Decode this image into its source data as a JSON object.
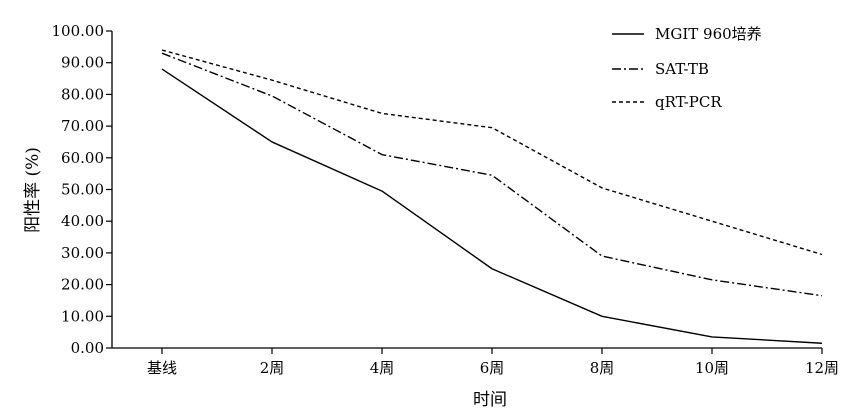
{
  "chart_data": {
    "type": "line",
    "title": "",
    "xlabel": "时间",
    "ylabel": "阳性率 (%)",
    "categories": [
      "基线",
      "2周",
      "4周",
      "6周",
      "8周",
      "10周",
      "12周"
    ],
    "ylim": [
      0,
      100
    ],
    "yticks": [
      "0.00",
      "10.00",
      "20.00",
      "30.00",
      "40.00",
      "50.00",
      "60.00",
      "70.00",
      "80.00",
      "90.00",
      "100.00"
    ],
    "grid": false,
    "legend_position": "top-right",
    "series": [
      {
        "name": "MGIT 960培养",
        "style": "solid",
        "color": "#000000",
        "values": [
          88.0,
          65.0,
          49.5,
          25.0,
          10.0,
          3.5,
          1.5
        ]
      },
      {
        "name": "SAT-TB",
        "style": "dashdot",
        "color": "#000000",
        "values": [
          93.0,
          79.5,
          61.0,
          54.5,
          29.0,
          21.5,
          16.5
        ]
      },
      {
        "name": "qRT-PCR",
        "style": "dashed",
        "color": "#000000",
        "values": [
          94.0,
          84.5,
          74.0,
          69.5,
          50.5,
          40.0,
          29.5
        ]
      }
    ]
  }
}
